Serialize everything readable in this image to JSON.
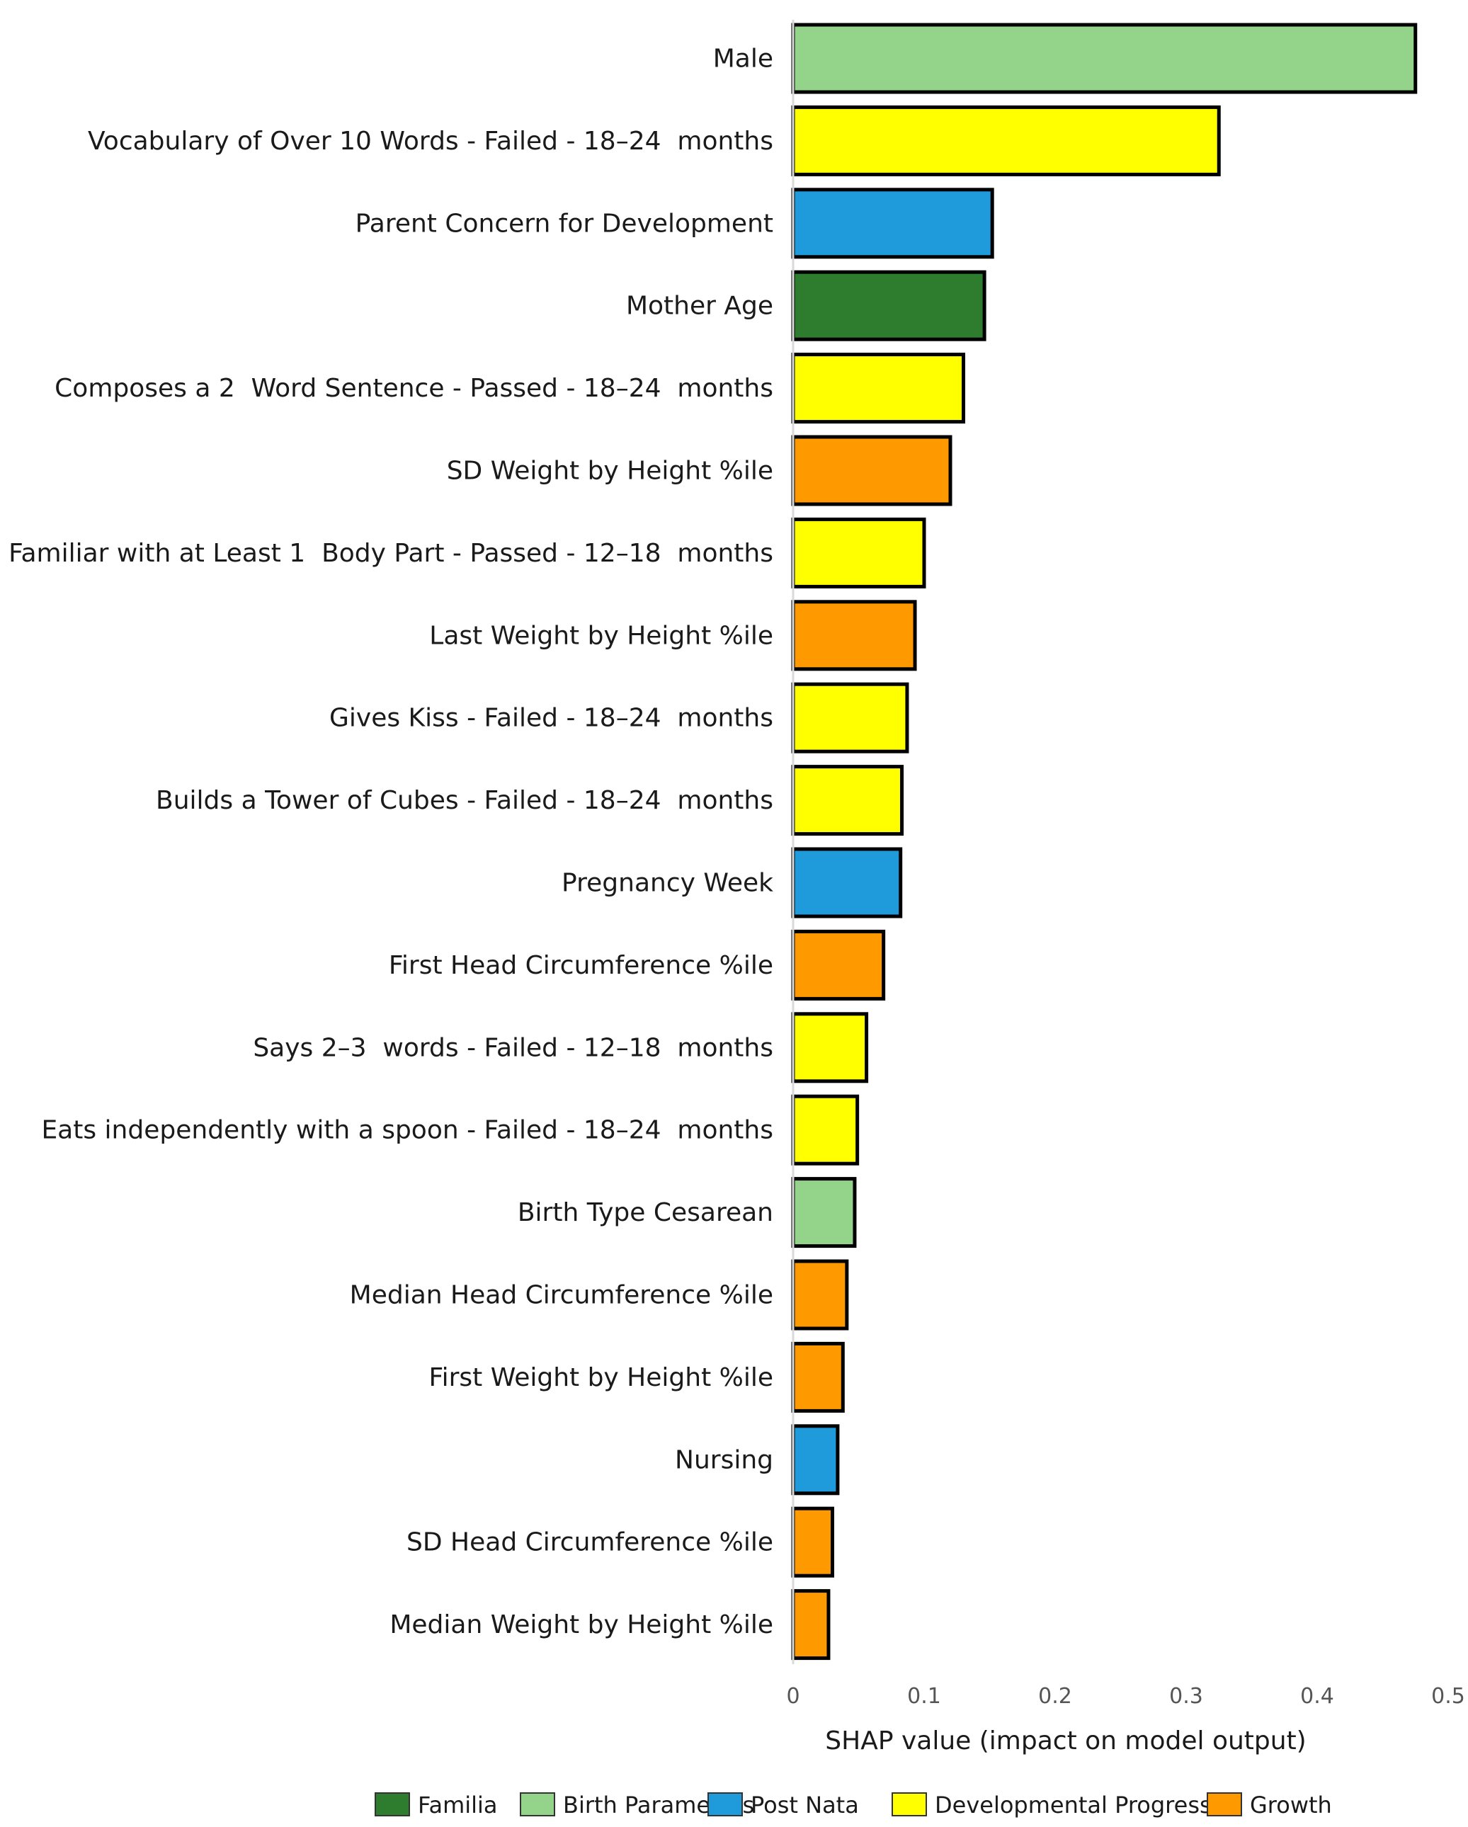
{
  "chart_data": {
    "type": "bar",
    "orientation": "horizontal",
    "xlabel": "SHAP value (impact on model output)",
    "ylabel": "",
    "xlim": [
      0,
      0.5
    ],
    "xticks": [
      0,
      0.1,
      0.2,
      0.3,
      0.4,
      0.5
    ],
    "xtick_labels": [
      "0",
      "0.1",
      "0.2",
      "0.3",
      "0.4",
      "0.5"
    ],
    "grid": false,
    "legend_position": "bottom",
    "groups": [
      {
        "name": "Familial",
        "label": "Familia",
        "color": "#2e7d2e"
      },
      {
        "name": "Birth Parameters",
        "label": "Birth Parameters",
        "color": "#94d38a"
      },
      {
        "name": "Post Natal",
        "label": "Post Nata",
        "color": "#1f9bdc"
      },
      {
        "name": "Developmental Progress",
        "label": "Developmental Progress",
        "color": "#ffff00"
      },
      {
        "name": "Growth",
        "label": "Growth",
        "color": "#ff9900"
      }
    ],
    "bars": [
      {
        "label": "Male",
        "value": 0.475,
        "group": "Birth Parameters"
      },
      {
        "label": "Vocabulary of Over 10 Words - Failed - 18–24  months",
        "value": 0.325,
        "group": "Developmental Progress"
      },
      {
        "label": "Parent Concern for Development",
        "value": 0.152,
        "group": "Post Natal"
      },
      {
        "label": "Mother Age",
        "value": 0.146,
        "group": "Familial"
      },
      {
        "label": "Composes a 2  Word Sentence - Passed - 18–24  months",
        "value": 0.13,
        "group": "Developmental Progress"
      },
      {
        "label": "SD Weight by Height %ile",
        "value": 0.12,
        "group": "Growth"
      },
      {
        "label": "Familiar with at Least 1  Body Part - Passed - 12–18  months",
        "value": 0.1,
        "group": "Developmental Progress"
      },
      {
        "label": "Last Weight by Height %ile",
        "value": 0.093,
        "group": "Growth"
      },
      {
        "label": "Gives Kiss - Failed - 18–24  months",
        "value": 0.087,
        "group": "Developmental Progress"
      },
      {
        "label": "Builds a Tower of Cubes - Failed - 18–24  months",
        "value": 0.083,
        "group": "Developmental Progress"
      },
      {
        "label": "Pregnancy Week",
        "value": 0.082,
        "group": "Post Natal"
      },
      {
        "label": "First Head Circumference %ile",
        "value": 0.069,
        "group": "Growth"
      },
      {
        "label": "Says 2–3  words - Failed - 12–18  months",
        "value": 0.056,
        "group": "Developmental Progress"
      },
      {
        "label": "Eats independently with a spoon - Failed - 18–24  months",
        "value": 0.049,
        "group": "Developmental Progress"
      },
      {
        "label": "Birth Type Cesarean",
        "value": 0.047,
        "group": "Birth Parameters"
      },
      {
        "label": "Median Head Circumference %ile",
        "value": 0.041,
        "group": "Growth"
      },
      {
        "label": "First Weight by Height %ile",
        "value": 0.038,
        "group": "Growth"
      },
      {
        "label": "Nursing",
        "value": 0.034,
        "group": "Post Natal"
      },
      {
        "label": "SD Head Circumference %ile",
        "value": 0.03,
        "group": "Growth"
      },
      {
        "label": "Median Weight by Height %ile",
        "value": 0.027,
        "group": "Growth"
      }
    ]
  }
}
